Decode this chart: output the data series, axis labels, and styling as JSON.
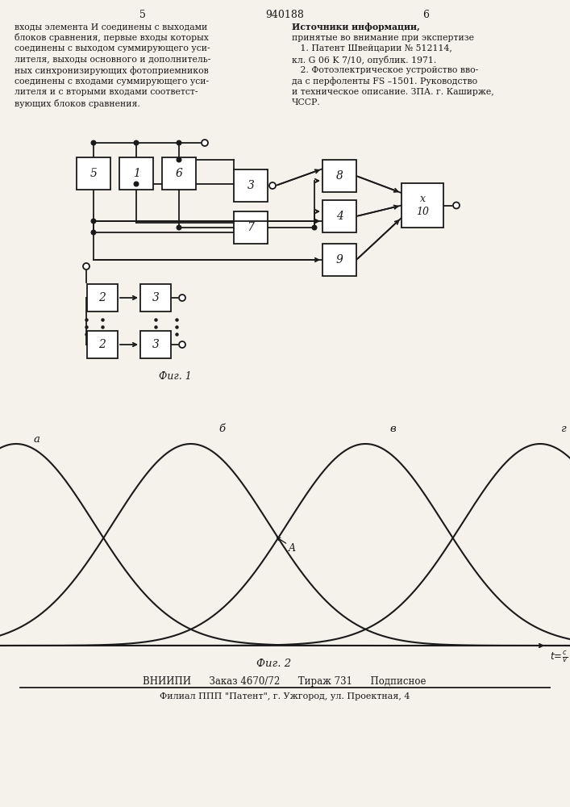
{
  "title_text": "940188",
  "page_left": "5",
  "page_right": "6",
  "fig1_label": "Фиг. 1",
  "fig2_label": "Фиг. 2",
  "bottom_text1": "ВНИИПИ      Заказ 4670/72      Тираж 731      Подписное",
  "bottom_text2": "Филиал ППП \"Патент\", г. Ужгород, ул. Проектная, 4",
  "background": "#f5f2eb",
  "line_color": "#1a1a1a"
}
